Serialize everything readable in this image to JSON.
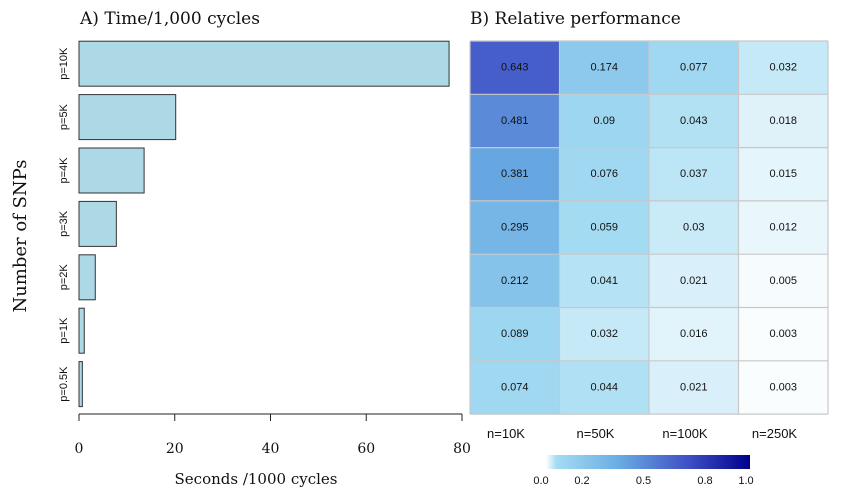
{
  "y_axis_title": "Number of SNPs",
  "chart_data": [
    {
      "type": "bar",
      "orientation": "horizontal",
      "title": "A) Time/1,000 cycles",
      "xlabel": "Seconds /1000 cycles",
      "ylabel": "Number of SNPs",
      "categories": [
        "p=10K",
        "p=5K",
        "p=4K",
        "p=3K",
        "p=2K",
        "p=1K",
        "p=0.5K"
      ],
      "values": [
        77.3,
        20.2,
        13.6,
        7.8,
        3.4,
        1.1,
        0.7
      ],
      "xlim": [
        0,
        80
      ],
      "xticks": [
        "0",
        "20",
        "40",
        "60",
        "80"
      ],
      "bar_color": "#add8e6",
      "grid": false
    },
    {
      "type": "heatmap",
      "title": "B) Relative performance",
      "rows": [
        "p=10K",
        "p=5K",
        "p=4K",
        "p=3K",
        "p=2K",
        "p=1K",
        "p=0.5K"
      ],
      "columns": [
        "n=10K",
        "n=50K",
        "n=100K",
        "n=250K"
      ],
      "values": [
        [
          "0.643",
          "0.174",
          "0.077",
          "0.032"
        ],
        [
          "0.481",
          "0.09",
          "0.043",
          "0.018"
        ],
        [
          "0.381",
          "0.076",
          "0.037",
          "0.015"
        ],
        [
          "0.295",
          "0.059",
          "0.03",
          "0.012"
        ],
        [
          "0.212",
          "0.041",
          "0.021",
          "0.005"
        ],
        [
          "0.089",
          "0.032",
          "0.016",
          "0.003"
        ],
        [
          "0.074",
          "0.044",
          "0.021",
          "0.003"
        ]
      ],
      "colorbar": {
        "range": [
          0,
          1
        ],
        "ticks": [
          "0.0",
          "0.2",
          "0.5",
          "0.8",
          "1.0"
        ],
        "colors": [
          "#ffffff",
          "#87ceeb",
          "#4169e1",
          "#00008b"
        ]
      },
      "grid": true
    }
  ]
}
